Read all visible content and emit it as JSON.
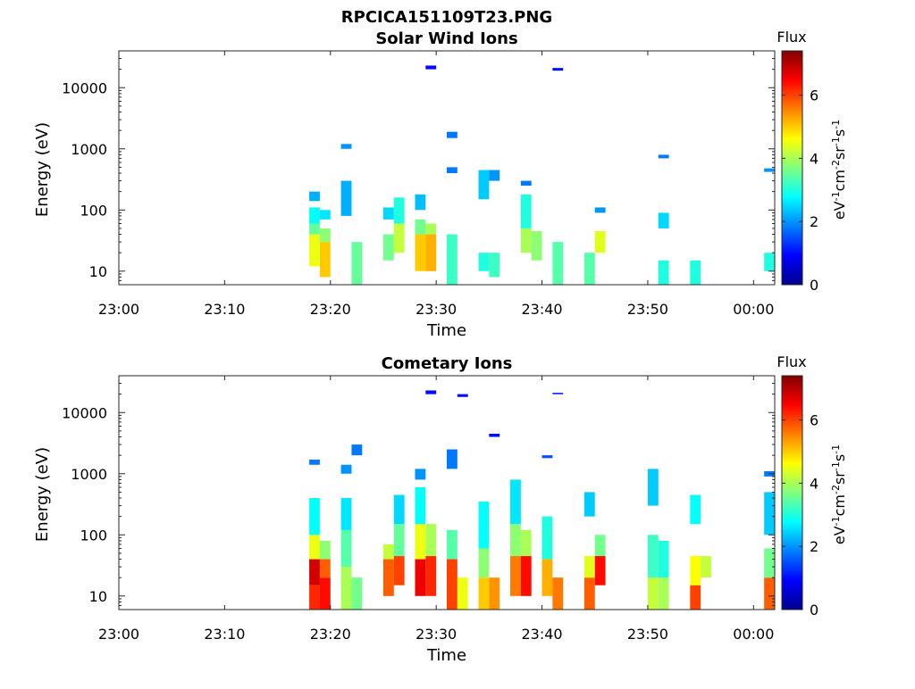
{
  "figure_title": "RPCICA151109T23.PNG",
  "chart_data": [
    {
      "type": "heatmap",
      "title": "Solar Wind Ions",
      "xlabel": "Time",
      "ylabel": "Energy (eV)",
      "y_scale": "log",
      "xlim": [
        "23:00",
        "00:02"
      ],
      "ylim": [
        6,
        40000
      ],
      "xticks": [
        "23:00",
        "23:10",
        "23:20",
        "23:30",
        "23:40",
        "23:50",
        "00:00"
      ],
      "yticks": [
        "10",
        "100",
        "1000",
        "10000"
      ],
      "colorbar": {
        "title": "Flux",
        "label": "eV⁻¹cm⁻²sr⁻¹s⁻¹",
        "label_parts": [
          [
            "eV",
            ""
          ],
          [
            "-1",
            "sup"
          ],
          [
            "cm",
            ""
          ],
          [
            "-2",
            "sup"
          ],
          [
            "sr",
            ""
          ],
          [
            "-1",
            "sup"
          ],
          [
            "s",
            ""
          ],
          [
            "-1",
            "sup"
          ]
        ],
        "ticks": [
          "0",
          "2",
          "4",
          "6"
        ],
        "range": [
          0,
          7.4
        ],
        "colormap": "jet"
      },
      "columns": [
        {
          "t": "23:18",
          "bins": [
            [
              12,
              40,
              4.5
            ],
            [
              40,
              60,
              3.5
            ],
            [
              60,
              110,
              2.8
            ],
            [
              140,
              200,
              2.2
            ]
          ]
        },
        {
          "t": "23:19",
          "bins": [
            [
              8,
              30,
              5.0
            ],
            [
              30,
              50,
              3.8
            ],
            [
              70,
              100,
              2.6
            ]
          ]
        },
        {
          "t": "23:21",
          "bins": [
            [
              80,
              300,
              2.2
            ],
            [
              1000,
              1200,
              2
            ]
          ]
        },
        {
          "t": "23:22",
          "bins": [
            [
              6,
              30,
              3.5
            ]
          ]
        },
        {
          "t": "23:25",
          "bins": [
            [
              15,
              40,
              3.6
            ],
            [
              70,
              110,
              2.5
            ]
          ]
        },
        {
          "t": "23:26",
          "bins": [
            [
              20,
              60,
              4.2
            ],
            [
              60,
              160,
              3.0
            ]
          ]
        },
        {
          "t": "23:28",
          "bins": [
            [
              10,
              40,
              5.0
            ],
            [
              40,
              70,
              3.6
            ],
            [
              100,
              180,
              2.3
            ]
          ]
        },
        {
          "t": "23:29",
          "bins": [
            [
              10,
              40,
              5.2
            ],
            [
              40,
              60,
              4.0
            ],
            [
              20000,
              23000,
              1
            ]
          ]
        },
        {
          "t": "23:31",
          "bins": [
            [
              6,
              40,
              3.2
            ],
            [
              1500,
              1900,
              1.8
            ],
            [
              400,
              500,
              1.8
            ]
          ]
        },
        {
          "t": "23:34",
          "bins": [
            [
              10,
              20,
              3.0
            ],
            [
              150,
              450,
              2.4
            ]
          ]
        },
        {
          "t": "23:35",
          "bins": [
            [
              8,
              20,
              3.2
            ],
            [
              300,
              450,
              2.0
            ]
          ]
        },
        {
          "t": "23:38",
          "bins": [
            [
              20,
              50,
              4.0
            ],
            [
              50,
              180,
              3.0
            ],
            [
              250,
              300,
              1.8
            ]
          ]
        },
        {
          "t": "23:39",
          "bins": [
            [
              15,
              45,
              3.8
            ]
          ]
        },
        {
          "t": "23:41",
          "bins": [
            [
              6,
              30,
              3.4
            ],
            [
              19000,
              21000,
              1
            ]
          ]
        },
        {
          "t": "23:44",
          "bins": [
            [
              6,
              20,
              3.4
            ]
          ]
        },
        {
          "t": "23:45",
          "bins": [
            [
              20,
              45,
              4.4
            ],
            [
              90,
              110,
              2
            ]
          ]
        },
        {
          "t": "23:51",
          "bins": [
            [
              6,
              15,
              3.0
            ],
            [
              50,
              90,
              2.5
            ],
            [
              700,
              800,
              1.8
            ]
          ]
        },
        {
          "t": "23:54",
          "bins": [
            [
              6,
              15,
              3.0
            ]
          ]
        },
        {
          "t": "00:01",
          "bins": [
            [
              10,
              20,
              3.0
            ],
            [
              420,
              480,
              2
            ]
          ]
        }
      ]
    },
    {
      "type": "heatmap",
      "title": "Cometary Ions",
      "xlabel": "Time",
      "ylabel": "Energy (eV)",
      "y_scale": "log",
      "xlim": [
        "23:00",
        "00:02"
      ],
      "ylim": [
        6,
        40000
      ],
      "xticks": [
        "23:00",
        "23:10",
        "23:20",
        "23:30",
        "23:40",
        "23:50",
        "00:00"
      ],
      "yticks": [
        "10",
        "100",
        "1000",
        "10000"
      ],
      "colorbar": {
        "title": "Flux",
        "label": "eV⁻¹cm⁻²sr⁻¹s⁻¹",
        "label_parts": [
          [
            "eV",
            ""
          ],
          [
            "-1",
            "sup"
          ],
          [
            "cm",
            ""
          ],
          [
            "-2",
            "sup"
          ],
          [
            "sr",
            ""
          ],
          [
            "-1",
            "sup"
          ],
          [
            "s",
            ""
          ],
          [
            "-1",
            "sup"
          ]
        ],
        "ticks": [
          "0",
          "2",
          "4",
          "6"
        ],
        "range": [
          0,
          7.4
        ],
        "colormap": "jet"
      },
      "columns": [
        {
          "t": "23:18",
          "bins": [
            [
              6,
              15,
              6.2
            ],
            [
              15,
              40,
              6.8
            ],
            [
              40,
              100,
              4.5
            ],
            [
              100,
              400,
              2.8
            ],
            [
              1400,
              1700,
              1.8
            ]
          ]
        },
        {
          "t": "23:19",
          "bins": [
            [
              6,
              20,
              6.4
            ],
            [
              20,
              40,
              5.8
            ],
            [
              40,
              80,
              3.8
            ]
          ]
        },
        {
          "t": "23:21",
          "bins": [
            [
              6,
              30,
              4.0
            ],
            [
              30,
              120,
              3.4
            ],
            [
              120,
              400,
              2.6
            ],
            [
              1000,
              1400,
              2
            ]
          ]
        },
        {
          "t": "23:22",
          "bins": [
            [
              6,
              20,
              3.6
            ],
            [
              2000,
              3000,
              1.8
            ]
          ]
        },
        {
          "t": "23:25",
          "bins": [
            [
              10,
              40,
              5.8
            ],
            [
              40,
              70,
              4.2
            ]
          ]
        },
        {
          "t": "23:26",
          "bins": [
            [
              15,
              45,
              6.0
            ],
            [
              45,
              150,
              3.5
            ],
            [
              150,
              450,
              2.5
            ]
          ]
        },
        {
          "t": "23:28",
          "bins": [
            [
              10,
              40,
              6.6
            ],
            [
              40,
              150,
              4.5
            ],
            [
              150,
              600,
              2.8
            ],
            [
              800,
              1200,
              2
            ]
          ]
        },
        {
          "t": "23:29",
          "bins": [
            [
              10,
              45,
              6.2
            ],
            [
              45,
              150,
              4.0
            ],
            [
              20000,
              23000,
              1
            ]
          ]
        },
        {
          "t": "23:31",
          "bins": [
            [
              6,
              40,
              6.0
            ],
            [
              40,
              120,
              3.4
            ],
            [
              1200,
              2500,
              1.8
            ]
          ]
        },
        {
          "t": "23:32",
          "bins": [
            [
              6,
              20,
              4.5
            ],
            [
              18000,
              20000,
              1
            ]
          ]
        },
        {
          "t": "23:34",
          "bins": [
            [
              6,
              20,
              5.0
            ],
            [
              20,
              60,
              3.8
            ],
            [
              60,
              350,
              2.8
            ]
          ]
        },
        {
          "t": "23:35",
          "bins": [
            [
              6,
              20,
              5.4
            ],
            [
              4000,
              4500,
              1
            ]
          ]
        },
        {
          "t": "23:37",
          "bins": [
            [
              10,
              45,
              5.6
            ],
            [
              45,
              150,
              3.8
            ],
            [
              150,
              800,
              2.6
            ]
          ]
        },
        {
          "t": "23:38",
          "bins": [
            [
              10,
              45,
              6.4
            ],
            [
              45,
              120,
              4.0
            ]
          ]
        },
        {
          "t": "23:40",
          "bins": [
            [
              10,
              40,
              5.2
            ],
            [
              40,
              200,
              3.0
            ],
            [
              1800,
              2000,
              1.5
            ]
          ]
        },
        {
          "t": "23:41",
          "bins": [
            [
              6,
              20,
              5.6
            ],
            [
              20000,
              21000,
              1
            ]
          ]
        },
        {
          "t": "23:44",
          "bins": [
            [
              6,
              20,
              5.8
            ],
            [
              20,
              45,
              4.4
            ],
            [
              200,
              500,
              2.4
            ]
          ]
        },
        {
          "t": "23:45",
          "bins": [
            [
              15,
              45,
              6.4
            ],
            [
              45,
              100,
              3.6
            ]
          ]
        },
        {
          "t": "23:50",
          "bins": [
            [
              6,
              20,
              4.2
            ],
            [
              20,
              100,
              3.2
            ],
            [
              300,
              1200,
              2.4
            ]
          ]
        },
        {
          "t": "23:51",
          "bins": [
            [
              6,
              20,
              4.0
            ],
            [
              20,
              80,
              3.0
            ]
          ]
        },
        {
          "t": "23:54",
          "bins": [
            [
              6,
              15,
              6.0
            ],
            [
              15,
              45,
              4.6
            ],
            [
              150,
              450,
              2.8
            ]
          ]
        },
        {
          "t": "23:55",
          "bins": [
            [
              20,
              45,
              4.2
            ]
          ]
        },
        {
          "t": "00:01",
          "bins": [
            [
              6,
              20,
              5.8
            ],
            [
              20,
              60,
              3.6
            ],
            [
              100,
              500,
              2.4
            ],
            [
              900,
              1100,
              1.8
            ]
          ]
        }
      ]
    }
  ]
}
